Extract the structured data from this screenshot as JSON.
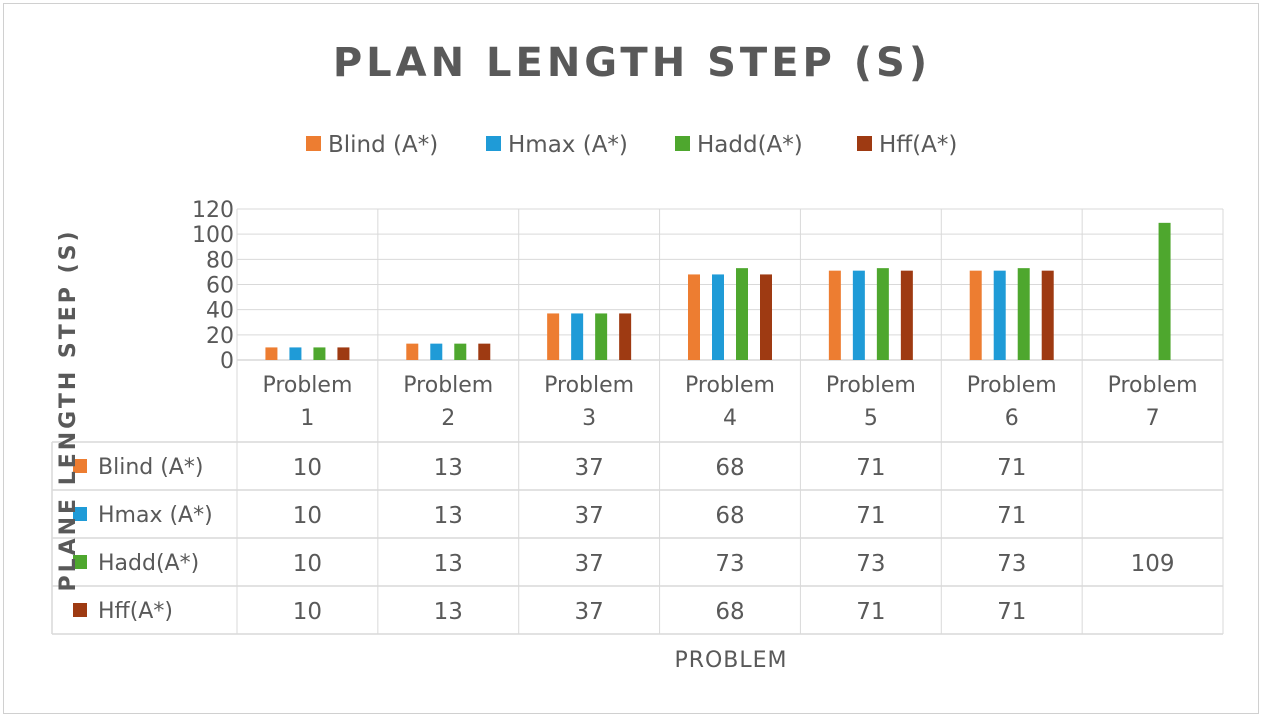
{
  "chart_data": {
    "type": "bar",
    "title": "PLAN LENGTH STEP (S)",
    "xlabel": "PROBLEM",
    "ylabel": "PLANE LENGTH STEP (S)",
    "ylim": [
      0,
      120
    ],
    "yticks": [
      0,
      20,
      40,
      60,
      80,
      100,
      120
    ],
    "grid": true,
    "legend_position": "top",
    "data_table": true,
    "categories": [
      [
        "Problem",
        "1"
      ],
      [
        "Problem",
        "2"
      ],
      [
        "Problem",
        "3"
      ],
      [
        "Problem",
        "4"
      ],
      [
        "Problem",
        "5"
      ],
      [
        "Problem",
        "6"
      ],
      [
        "Problem",
        "7"
      ]
    ],
    "series": [
      {
        "name": "Blind (A*)",
        "color": "#ED7D31",
        "values": [
          10,
          13,
          37,
          68,
          71,
          71,
          null
        ]
      },
      {
        "name": "Hmax (A*)",
        "color": "#1F9BD7",
        "values": [
          10,
          13,
          37,
          68,
          71,
          71,
          null
        ]
      },
      {
        "name": "Hadd(A*)",
        "color": "#4EA72E",
        "values": [
          10,
          13,
          37,
          73,
          73,
          73,
          109
        ]
      },
      {
        "name": "Hff(A*)",
        "color": "#9E3A12",
        "values": [
          10,
          13,
          37,
          68,
          71,
          71,
          null
        ]
      }
    ]
  }
}
